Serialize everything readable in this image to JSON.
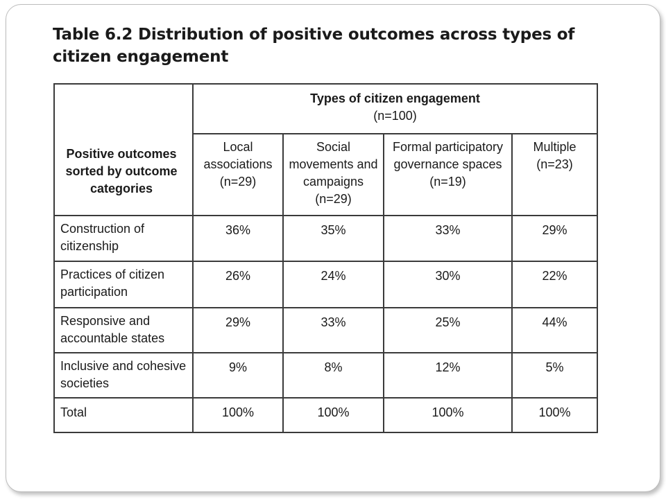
{
  "title": "Table 6.2 Distribution of positive outcomes across types of citizen engagement",
  "table": {
    "row_header": "Positive outcomes sorted by outcome categories",
    "group_header": "Types of citizen engagement",
    "group_sub": "(n=100)",
    "columns": [
      {
        "label": "Local associations",
        "n": "(n=29)"
      },
      {
        "label": "Social movements and campaigns",
        "n": "(n=29)"
      },
      {
        "label": "Formal participatory governance spaces",
        "n": "(n=19)"
      },
      {
        "label": "Multiple",
        "n": "(n=23)"
      }
    ],
    "rows": [
      {
        "label": "Construction of citizenship",
        "values": [
          "36%",
          "35%",
          "33%",
          "29%"
        ]
      },
      {
        "label": "Practices of citizen participation",
        "values": [
          "26%",
          "24%",
          "30%",
          "22%"
        ]
      },
      {
        "label": "Responsive and accountable states",
        "values": [
          "29%",
          "33%",
          "25%",
          "44%"
        ]
      },
      {
        "label": "Inclusive and cohesive societies",
        "values": [
          "9%",
          "8%",
          "12%",
          "5%"
        ]
      },
      {
        "label": "Total",
        "values": [
          "100%",
          "100%",
          "100%",
          "100%"
        ]
      }
    ]
  }
}
